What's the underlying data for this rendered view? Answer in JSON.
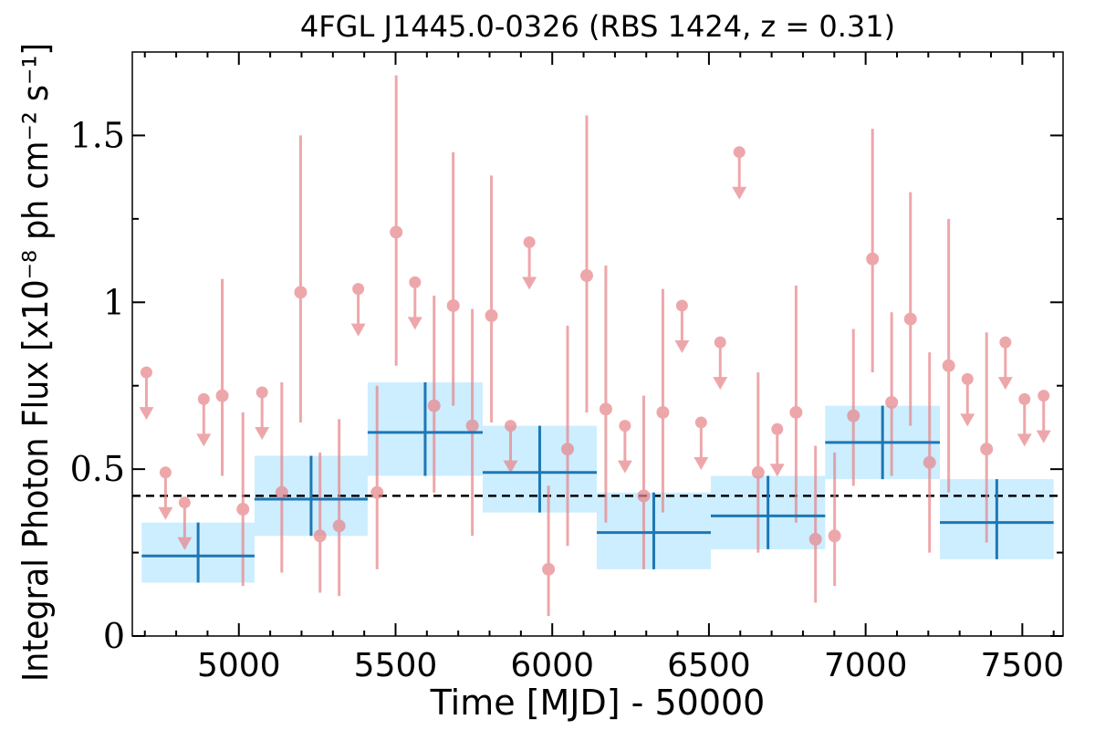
{
  "chart_data": {
    "type": "scatter",
    "title": "4FGL J1445.0-0326 (RBS 1424, z = 0.31)",
    "xlabel": "Time [MJD] - 50000",
    "ylabel": "Integral Photon Flux [x10⁻⁸ ph cm⁻² s⁻¹]",
    "xlim": [
      4660,
      7630
    ],
    "ylim": [
      0,
      1.75
    ],
    "xticks": [
      5000,
      5500,
      6000,
      6500,
      7000,
      7500
    ],
    "xtick_labels": [
      "5000",
      "5500",
      "6000",
      "6500",
      "7000",
      "7500"
    ],
    "yticks": [
      0,
      0.5,
      1,
      1.5
    ],
    "ytick_labels": [
      "0",
      "0.5",
      "1",
      "1.5"
    ],
    "grid": false,
    "mean_flux": 0.42,
    "colors": {
      "fine_points": "#e7868a",
      "coarse_bins": "#1f77b4",
      "coarse_band": "#cceeff",
      "mean_line": "#000000"
    },
    "series": [
      {
        "points": [
          {
            "x": 4947,
            "y": 0.72,
            "yerr": [
              0.24,
              0.35
            ]
          },
          {
            "x": 5013,
            "y": 0.38,
            "yerr": [
              0.23,
              0.29
            ]
          },
          {
            "x": 5137,
            "y": 0.43,
            "yerr": [
              0.24,
              0.33
            ]
          },
          {
            "x": 5197,
            "y": 1.03,
            "yerr": [
              0.39,
              0.47
            ]
          },
          {
            "x": 5259,
            "y": 0.3,
            "yerr": [
              0.17,
              0.25
            ]
          },
          {
            "x": 5320,
            "y": 0.33,
            "yerr": [
              0.21,
              0.32
            ]
          },
          {
            "x": 5441,
            "y": 0.43,
            "yerr": [
              0.23,
              0.32
            ]
          },
          {
            "x": 5502,
            "y": 1.21,
            "yerr": [
              0.4,
              0.47
            ]
          },
          {
            "x": 5623,
            "y": 0.69,
            "yerr": [
              0.26,
              0.33
            ]
          },
          {
            "x": 5684,
            "y": 0.99,
            "yerr": [
              0.3,
              0.46
            ]
          },
          {
            "x": 5745,
            "y": 0.63,
            "yerr": [
              0.33,
              0.35
            ]
          },
          {
            "x": 5806,
            "y": 0.96,
            "yerr": [
              0.32,
              0.42
            ]
          },
          {
            "x": 5988,
            "y": 0.2,
            "yerr": [
              0.14,
              0.25
            ]
          },
          {
            "x": 6049,
            "y": 0.56,
            "yerr": [
              0.29,
              0.37
            ]
          },
          {
            "x": 6110,
            "y": 1.08,
            "yerr": [
              0.41,
              0.48
            ]
          },
          {
            "x": 6171,
            "y": 0.68,
            "yerr": [
              0.34,
              0.43
            ]
          },
          {
            "x": 6292,
            "y": 0.42,
            "yerr": [
              0.22,
              0.3
            ]
          },
          {
            "x": 6353,
            "y": 0.67,
            "yerr": [
              0.3,
              0.37
            ]
          },
          {
            "x": 6657,
            "y": 0.49,
            "yerr": [
              0.24,
              0.3
            ]
          },
          {
            "x": 6778,
            "y": 0.67,
            "yerr": [
              0.33,
              0.38
            ]
          },
          {
            "x": 6840,
            "y": 0.29,
            "yerr": [
              0.19,
              0.28
            ]
          },
          {
            "x": 6901,
            "y": 0.3,
            "yerr": [
              0.15,
              0.25
            ]
          },
          {
            "x": 6961,
            "y": 0.66,
            "yerr": [
              0.21,
              0.26
            ]
          },
          {
            "x": 7022,
            "y": 1.13,
            "yerr": [
              0.34,
              0.39
            ]
          },
          {
            "x": 7083,
            "y": 0.7,
            "yerr": [
              0.22,
              0.27
            ]
          },
          {
            "x": 7143,
            "y": 0.95,
            "yerr": [
              0.32,
              0.38
            ]
          },
          {
            "x": 7204,
            "y": 0.52,
            "yerr": [
              0.27,
              0.33
            ]
          },
          {
            "x": 7265,
            "y": 0.81,
            "yerr": [
              0.38,
              0.44
            ]
          },
          {
            "x": 7386,
            "y": 0.56,
            "yerr": [
              0.28,
              0.35
            ]
          }
        ]
      },
      {
        "upper_limits": [
          {
            "x": 4705,
            "y": 0.79
          },
          {
            "x": 4766,
            "y": 0.49
          },
          {
            "x": 4827,
            "y": 0.4
          },
          {
            "x": 4888,
            "y": 0.71
          },
          {
            "x": 5074,
            "y": 0.73
          },
          {
            "x": 5381,
            "y": 1.04
          },
          {
            "x": 5562,
            "y": 1.06
          },
          {
            "x": 5867,
            "y": 0.63
          },
          {
            "x": 5927,
            "y": 1.18
          },
          {
            "x": 6232,
            "y": 0.63
          },
          {
            "x": 6414,
            "y": 0.99
          },
          {
            "x": 6475,
            "y": 0.64
          },
          {
            "x": 6536,
            "y": 0.88
          },
          {
            "x": 6597,
            "y": 1.45
          },
          {
            "x": 6718,
            "y": 0.62
          },
          {
            "x": 7325,
            "y": 0.77
          },
          {
            "x": 7446,
            "y": 0.88
          },
          {
            "x": 7507,
            "y": 0.71
          },
          {
            "x": 7568,
            "y": 0.72
          }
        ]
      },
      {
        "bins": [
          {
            "x0": 4690,
            "x1": 5050,
            "y": 0.24,
            "ylow": 0.16,
            "yhigh": 0.34
          },
          {
            "x0": 5050,
            "x1": 5411,
            "y": 0.41,
            "ylow": 0.3,
            "yhigh": 0.54
          },
          {
            "x0": 5411,
            "x1": 5778,
            "y": 0.61,
            "ylow": 0.48,
            "yhigh": 0.76
          },
          {
            "x0": 5778,
            "x1": 6142,
            "y": 0.49,
            "ylow": 0.37,
            "yhigh": 0.63
          },
          {
            "x0": 6142,
            "x1": 6506,
            "y": 0.31,
            "ylow": 0.2,
            "yhigh": 0.43
          },
          {
            "x0": 6506,
            "x1": 6871,
            "y": 0.36,
            "ylow": 0.26,
            "yhigh": 0.48
          },
          {
            "x0": 6871,
            "x1": 7237,
            "y": 0.58,
            "ylow": 0.47,
            "yhigh": 0.69
          },
          {
            "x0": 7237,
            "x1": 7600,
            "y": 0.34,
            "ylow": 0.23,
            "yhigh": 0.47
          }
        ]
      }
    ]
  }
}
